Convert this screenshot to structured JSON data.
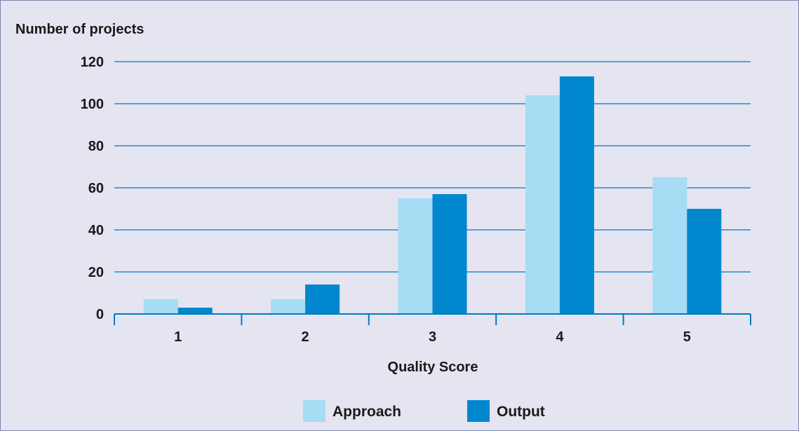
{
  "chart_data": {
    "type": "bar",
    "title": "",
    "ylabel": "Number of projects",
    "xlabel": "Quality Score",
    "categories": [
      "1",
      "2",
      "3",
      "4",
      "5"
    ],
    "series": [
      {
        "name": "Approach",
        "values": [
          7,
          7,
          55,
          104,
          65
        ],
        "color": "#a6dcf4"
      },
      {
        "name": "Output",
        "values": [
          3,
          14,
          57,
          113,
          50
        ],
        "color": "#0087cd"
      }
    ],
    "ylim": [
      0,
      120
    ],
    "yticks": [
      0,
      20,
      40,
      60,
      80,
      100,
      120
    ],
    "grid": true,
    "legend_position": "bottom-center",
    "colors": {
      "background": "#e4e5f1",
      "gridline": "#0079c1",
      "axis": "#0079c1"
    }
  }
}
